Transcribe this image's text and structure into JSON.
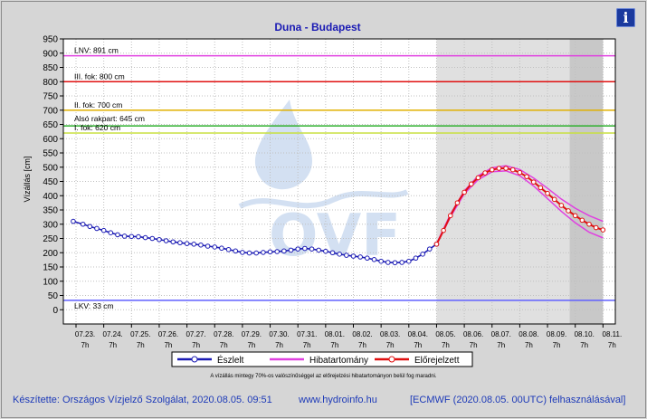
{
  "info_button": {
    "label": "i",
    "icon": "info-icon"
  },
  "chart_data": {
    "type": "line",
    "title": "Duna - Budapest",
    "ylabel": "Vízállás [cm]",
    "xlabel": "",
    "ylim": [
      -50,
      950
    ],
    "yticks": [
      0,
      50,
      100,
      150,
      200,
      250,
      300,
      350,
      400,
      450,
      500,
      550,
      600,
      650,
      700,
      750,
      800,
      850,
      900,
      950
    ],
    "x_dates": [
      "07.23.",
      "07.24.",
      "07.25.",
      "07.26.",
      "07.27.",
      "07.28.",
      "07.29.",
      "07.30.",
      "07.31.",
      "08.01.",
      "08.02.",
      "08.03.",
      "08.04.",
      "08.05.",
      "08.06.",
      "08.07.",
      "08.08.",
      "08.09.",
      "08.10.",
      "08.11."
    ],
    "x_time": "7h",
    "grid": true,
    "thresholds": [
      {
        "label": "LNV: 891 cm",
        "value": 891,
        "color": "#e040e0"
      },
      {
        "label": "III. fok: 800 cm",
        "value": 800,
        "color": "#e01010"
      },
      {
        "label": "II. fok: 700 cm",
        "value": 700,
        "color": "#e0b000"
      },
      {
        "label": "Alsó rakpart: 645 cm",
        "value": 645,
        "color": "#30b030"
      },
      {
        "label": "I. fok: 620 cm",
        "value": 620,
        "color": "#c8e040"
      },
      {
        "label": "LKV: 33 cm",
        "value": 33,
        "color": "#6060ff"
      }
    ],
    "shaded_regions": [
      {
        "from_day": 13,
        "to_day": 19,
        "color": "#e0e0e0"
      },
      {
        "from_day": 17.8,
        "to_day": 19,
        "color": "#c8c8c8"
      }
    ],
    "watermark": "OVF",
    "series": [
      {
        "name": "Észlelt",
        "color": "#1c1cb4",
        "x_days": [
          -0.1,
          0.25,
          0.5,
          0.75,
          1.0,
          1.25,
          1.5,
          1.75,
          2.0,
          2.25,
          2.5,
          2.75,
          3.0,
          3.25,
          3.5,
          3.75,
          4.0,
          4.25,
          4.5,
          4.75,
          5.0,
          5.25,
          5.5,
          5.75,
          6.0,
          6.25,
          6.5,
          6.75,
          7.0,
          7.25,
          7.5,
          7.75,
          8.0,
          8.25,
          8.5,
          8.75,
          9.0,
          9.25,
          9.5,
          9.75,
          10.0,
          10.25,
          10.5,
          10.75,
          11.0,
          11.25,
          11.5,
          11.75,
          12.0,
          12.25,
          12.5,
          12.75,
          13.0
        ],
        "values": [
          310,
          300,
          292,
          285,
          278,
          270,
          263,
          258,
          257,
          256,
          253,
          250,
          246,
          242,
          238,
          235,
          232,
          230,
          227,
          223,
          220,
          216,
          211,
          206,
          201,
          199,
          199,
          201,
          203,
          204,
          206,
          209,
          213,
          215,
          213,
          209,
          205,
          200,
          195,
          191,
          188,
          185,
          181,
          176,
          170,
          166,
          165,
          166,
          170,
          181,
          195,
          213,
          230
        ]
      },
      {
        "name": "Előrejelzett",
        "color": "#e01010",
        "x_days": [
          13.0,
          13.25,
          13.5,
          13.75,
          14.0,
          14.25,
          14.5,
          14.75,
          15.0,
          15.25,
          15.5,
          15.75,
          16.0,
          16.25,
          16.5,
          16.75,
          17.0,
          17.25,
          17.5,
          17.75,
          18.0,
          18.25,
          18.5,
          18.75,
          19.0
        ],
        "values": [
          230,
          278,
          330,
          375,
          412,
          441,
          463,
          480,
          491,
          496,
          496,
          491,
          481,
          467,
          448,
          428,
          408,
          387,
          366,
          347,
          330,
          314,
          300,
          288,
          280
        ]
      }
    ],
    "band": {
      "name": "Hibatartomány",
      "color": "#e040e0",
      "x_days": [
        13.0,
        13.5,
        14.0,
        14.5,
        15.0,
        15.5,
        16.0,
        16.5,
        17.0,
        17.5,
        18.0,
        18.5,
        19.0
      ],
      "upper": [
        232,
        335,
        417,
        470,
        498,
        505,
        492,
        462,
        426,
        388,
        356,
        330,
        310
      ],
      "lower": [
        228,
        325,
        407,
        456,
        484,
        487,
        470,
        434,
        390,
        345,
        305,
        272,
        252
      ]
    },
    "legend": {
      "placement": "bottom",
      "items": [
        "Észlelt",
        "Hibatartomány",
        "Előrejelzett"
      ]
    },
    "note": "A vízállás mintegy 70%-os valószínűséggel az előrejelzési hibatartományon belül fog maradni."
  },
  "footer": {
    "author": "Készítette: Országos Vízjelző Szolgálat, 2020.08.05. 09:51",
    "website": "www.hydroinfo.hu",
    "model": "[ECMWF (2020.08.05. 00UTC) felhasználásával]"
  }
}
